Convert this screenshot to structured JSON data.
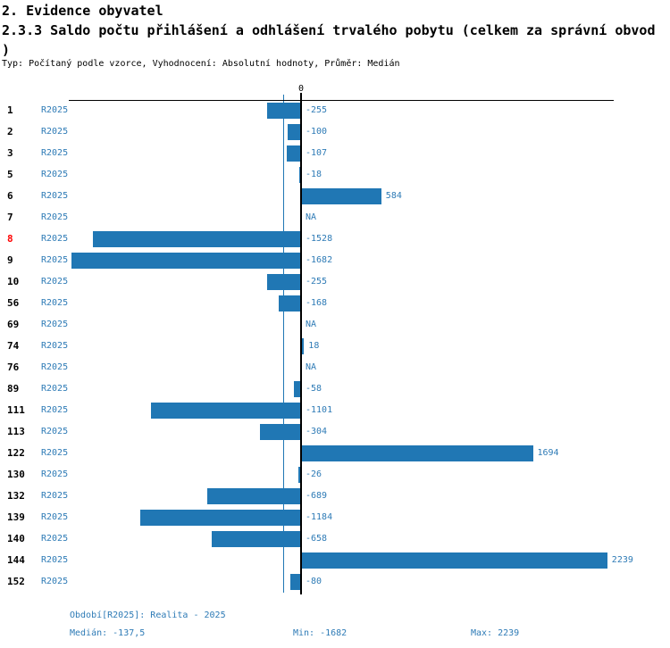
{
  "header": {
    "title": "2. Evidence obyvatel",
    "subtitle_line1": "2.3.3 Saldo počtu přihlášení a odhlášení trvalého pobytu (celkem za správní obvod",
    "subtitle_line2": ")",
    "meta": "Typ: Počítaný podle vzorce, Vyhodnocení: Absolutní hodnoty, Průměr: Medián"
  },
  "chart_data": {
    "type": "bar",
    "orientation": "horizontal",
    "title": "2.3.3 Saldo počtu přihlášení a odhlášení trvalého pobytu (celkem za správní obvod)",
    "series_label": "R2025",
    "axis_zero_label": "0",
    "categories": [
      "1",
      "2",
      "3",
      "5",
      "6",
      "7",
      "8",
      "9",
      "10",
      "56",
      "69",
      "74",
      "76",
      "89",
      "111",
      "113",
      "122",
      "130",
      "132",
      "139",
      "140",
      "144",
      "152"
    ],
    "values": [
      -255,
      -100,
      -107,
      -18,
      584,
      null,
      -1528,
      -1682,
      -255,
      -168,
      null,
      18,
      null,
      -58,
      -1101,
      -304,
      1694,
      -26,
      -689,
      -1184,
      -658,
      2239,
      -80
    ],
    "value_labels": [
      "-255",
      "-100",
      "-107",
      "-18",
      "584",
      "NA",
      "-1528",
      "-1682",
      "-255",
      "-168",
      "NA",
      "18",
      "NA",
      "-58",
      "-1101",
      "-304",
      "1694",
      "-26",
      "-689",
      "-1184",
      "-658",
      "2239",
      "-80"
    ],
    "highlighted_category": "8",
    "median": -137.5,
    "xlim": [
      -1702,
      2284
    ],
    "grid": false,
    "legend_position": "none",
    "colors": {
      "bar": "#2077b4",
      "text_blue": "#2e7bb6",
      "highlight": "#ff0000",
      "axis": "#000000"
    }
  },
  "footer": {
    "period": "Období[R2025]: Realita - 2025",
    "median": "Medián: -137,5",
    "min": "Min: -1682",
    "max": "Max: 2239"
  }
}
